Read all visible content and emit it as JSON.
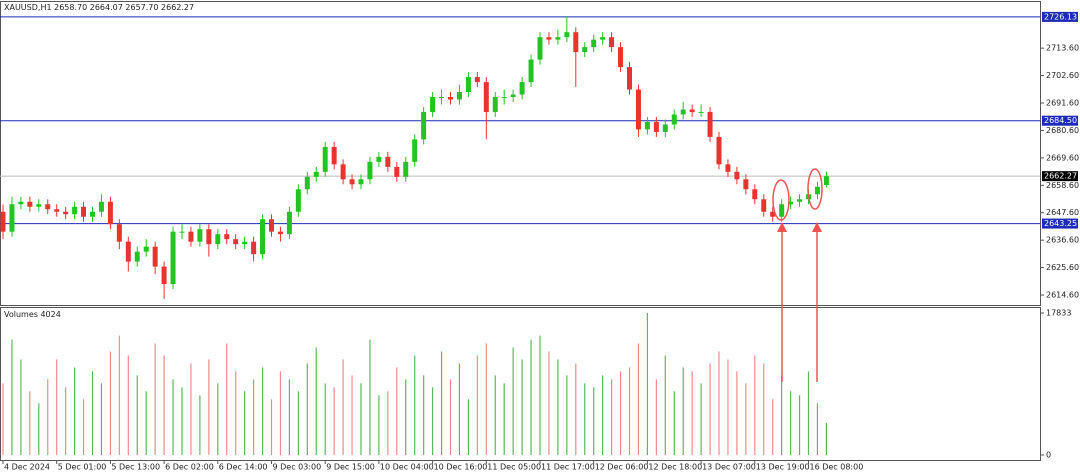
{
  "chart_data": {
    "type": "candlestick",
    "header": {
      "symbol": "XAUUSD,H1",
      "quote": [
        "2658.70",
        "2664.07",
        "2657.70",
        "2662.27"
      ]
    },
    "volume_title": "Volumes",
    "categories": [
      "4 Dec 2024",
      null,
      null,
      null,
      null,
      null,
      "5 Dec 01:00",
      null,
      null,
      null,
      null,
      null,
      "5 Dec 13:00",
      null,
      null,
      null,
      null,
      null,
      "6 Dec 02:00",
      null,
      null,
      null,
      null,
      null,
      "6 Dec 14:00",
      null,
      null,
      null,
      null,
      null,
      "9 Dec 03:00",
      null,
      null,
      null,
      null,
      null,
      "9 Dec 15:00",
      null,
      null,
      null,
      null,
      null,
      "10 Dec 04:00",
      null,
      null,
      null,
      null,
      null,
      "10 Dec 16:00",
      null,
      null,
      null,
      null,
      null,
      "11 Dec 05:00",
      null,
      null,
      null,
      null,
      null,
      "11 Dec 17:00",
      null,
      null,
      null,
      null,
      null,
      "12 Dec 06:00",
      null,
      null,
      null,
      null,
      null,
      "12 Dec 18:00",
      null,
      null,
      null,
      null,
      null,
      "13 Dec 07:00",
      null,
      null,
      null,
      null,
      null,
      "13 Dec 19:00",
      null,
      null,
      null,
      null,
      null,
      "16 Dec 08:00",
      null,
      null
    ],
    "open": [
      2648,
      2640,
      2651,
      2652,
      2650,
      2651,
      2649,
      2648,
      2647,
      2650,
      2646,
      2648,
      2652,
      2643,
      2636,
      2628,
      2632,
      2634,
      2626,
      2619,
      2640,
      2640,
      2636,
      2641,
      2635,
      2639,
      2637,
      2635,
      2636,
      2631,
      2645,
      2640,
      2639,
      2648,
      2657,
      2662,
      2664,
      2674,
      2667,
      2661,
      2659,
      2661,
      2668,
      2670,
      2666,
      2662,
      2668,
      2677,
      2688,
      2694,
      2694,
      2693,
      2696,
      2702,
      2700,
      2688,
      2694,
      2694,
      2695,
      2700,
      2709,
      2718,
      2717,
      2718,
      2720,
      2712,
      2714,
      2717,
      2718,
      2714,
      2706,
      2697,
      2681,
      2684,
      2680,
      2683,
      2687,
      2689,
      2688,
      2688,
      2678,
      2667,
      2664,
      2661,
      2657,
      2653,
      2648,
      2646,
      2651,
      2652,
      2653,
      2655,
      2658.7
    ],
    "high": [
      2651,
      2654,
      2654,
      2654,
      2653,
      2653,
      2651,
      2650,
      2652,
      2652,
      2650,
      2655,
      2654,
      2645,
      2638,
      2634,
      2637,
      2636,
      2628,
      2642,
      2643,
      2642,
      2643,
      2643,
      2641,
      2641,
      2639,
      2638,
      2638,
      2647,
      2647,
      2642,
      2650,
      2659,
      2664,
      2666,
      2676,
      2676,
      2669,
      2663,
      2663,
      2670,
      2672,
      2672,
      2668,
      2670,
      2679,
      2690,
      2696,
      2697,
      2696,
      2699,
      2704,
      2704,
      2702,
      2696,
      2697,
      2697,
      2702,
      2711,
      2720,
      2720,
      2721,
      2726.13,
      2722,
      2716,
      2719,
      2720,
      2720,
      2716,
      2708,
      2699,
      2686,
      2686,
      2685,
      2689,
      2692,
      2691,
      2691,
      2690,
      2680,
      2669,
      2666,
      2663,
      2659,
      2655,
      2650,
      2653,
      2654,
      2655,
      2657,
      2660,
      2664.07
    ],
    "low": [
      2637,
      2638,
      2649,
      2648,
      2648,
      2647,
      2646,
      2645,
      2645,
      2644,
      2644,
      2646,
      2641,
      2633,
      2624,
      2626,
      2630,
      2623,
      2613,
      2617,
      2637,
      2634,
      2634,
      2630,
      2633,
      2635,
      2633,
      2633,
      2628,
      2629,
      2638,
      2636,
      2637,
      2646,
      2655,
      2660,
      2662,
      2665,
      2659,
      2657,
      2657,
      2659,
      2666,
      2664,
      2660,
      2660,
      2666,
      2675,
      2686,
      2691,
      2691,
      2691,
      2694,
      2698,
      2677,
      2686,
      2691,
      2692,
      2693,
      2698,
      2707,
      2715,
      2715,
      2716,
      2698,
      2710,
      2712,
      2715,
      2712,
      2704,
      2695,
      2678,
      2679,
      2678,
      2678,
      2681,
      2685,
      2686,
      2686,
      2676,
      2665,
      2662,
      2659,
      2655,
      2651,
      2646,
      2644,
      2644,
      2649,
      2650,
      2651,
      2653,
      2657.7
    ],
    "close": [
      2640,
      2651,
      2652,
      2650,
      2651,
      2649,
      2648,
      2647,
      2650,
      2646,
      2648,
      2652,
      2643,
      2636,
      2628,
      2632,
      2634,
      2626,
      2619,
      2640,
      2640,
      2636,
      2641,
      2635,
      2639,
      2637,
      2635,
      2636,
      2631,
      2645,
      2640,
      2639,
      2648,
      2657,
      2662,
      2664,
      2674,
      2667,
      2661,
      2659,
      2661,
      2668,
      2670,
      2666,
      2662,
      2668,
      2677,
      2688,
      2694,
      2694,
      2693,
      2696,
      2702,
      2700,
      2688,
      2694,
      2694,
      2695,
      2700,
      2709,
      2718,
      2717,
      2718,
      2720,
      2712,
      2714,
      2717,
      2718,
      2714,
      2706,
      2697,
      2681,
      2684,
      2680,
      2683,
      2687,
      2689,
      2688,
      2688,
      2678,
      2667,
      2664,
      2661,
      2657,
      2653,
      2648,
      2646,
      2651,
      2652,
      2653,
      2655,
      2658,
      2662.27
    ],
    "volume": [
      9000,
      14500,
      12000,
      8000,
      6500,
      9500,
      12000,
      8500,
      11000,
      7000,
      10500,
      9000,
      13000,
      15000,
      12500,
      10000,
      8000,
      14000,
      12500,
      9500,
      8500,
      11500,
      7500,
      12000,
      9000,
      14000,
      10500,
      8000,
      9500,
      11000,
      7000,
      10500,
      9500,
      8000,
      11500,
      13500,
      9000,
      8500,
      12000,
      10000,
      9000,
      14500,
      7500,
      8000,
      11000,
      9500,
      12500,
      10000,
      8500,
      13000,
      9500,
      11500,
      7000,
      12500,
      14000,
      10000,
      9000,
      13500,
      12000,
      14500,
      15000,
      13000,
      12000,
      10000,
      11500,
      9000,
      8500,
      10000,
      9500,
      10500,
      11000,
      14000,
      17833,
      9500,
      12500,
      8000,
      11000,
      10500,
      9000,
      11500,
      13000,
      12000,
      10500,
      9000,
      12500,
      11500,
      7000,
      10000,
      8000,
      7500,
      10500,
      6500,
      4024
    ],
    "ylim": [
      2610.6,
      2732.1
    ],
    "yticks": [
      {
        "value": 2614.6,
        "label": "2614.60"
      },
      {
        "value": 2625.6,
        "label": "2625.60"
      },
      {
        "value": 2636.6,
        "label": "2636.60"
      },
      {
        "value": 2647.6,
        "label": "2647.60"
      },
      {
        "value": 2658.6,
        "label": "2658.60"
      },
      {
        "value": 2669.6,
        "label": "2669.60"
      },
      {
        "value": 2680.6,
        "label": "2680.60"
      },
      {
        "value": 2691.6,
        "label": "2691.60"
      },
      {
        "value": 2702.6,
        "label": "2702.60"
      },
      {
        "value": 2713.6,
        "label": "2713.60"
      }
    ],
    "levels": [
      2726.13,
      {
        "value": 2684.5,
        "label": "2684.50"
      },
      2643.25
    ],
    "level_color": "#1c2bb8",
    "volume_lim": [
      0,
      18460
    ],
    "volume_ticks": [
      0,
      17833
    ],
    "up_color": "#22c322",
    "down_color": "#e8332e",
    "volume_up_color": "#5cb85c",
    "volume_down_color": "#f08a8a"
  }
}
